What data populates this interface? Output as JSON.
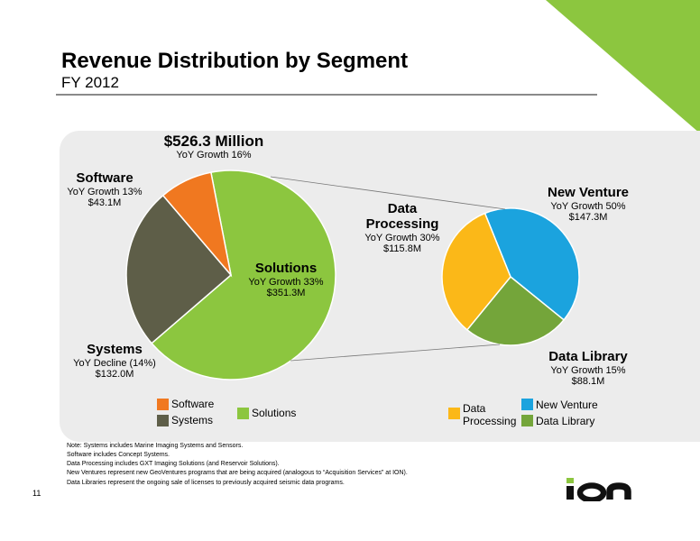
{
  "header": {
    "title": "Revenue Distribution by Segment",
    "subtitle": "FY 2012"
  },
  "colors": {
    "software": "#f07820",
    "systems": "#5e5e48",
    "solutions": "#8cc63f",
    "data_processing": "#fbb818",
    "new_venture": "#1ba3de",
    "data_library": "#74a53a",
    "corner_accent": "#8cc63f",
    "panel": "#ececec"
  },
  "total": {
    "value": "$526.3 Million",
    "growth": "YoY Growth 16%"
  },
  "labels": {
    "software": {
      "name": "Software",
      "growth": "YoY Growth 13%",
      "amount": "$43.1M"
    },
    "systems": {
      "name": "Systems",
      "growth": "YoY Decline (14%)",
      "amount": "$132.0M"
    },
    "solutions": {
      "name": "Solutions",
      "growth": "YoY Growth 33%",
      "amount": "$351.3M"
    },
    "data_processing": {
      "name_line1": "Data",
      "name_line2": "Processing",
      "growth": "YoY Growth 30%",
      "amount": "$115.8M"
    },
    "new_venture": {
      "name": "New Venture",
      "growth": "YoY Growth 50%",
      "amount": "$147.3M"
    },
    "data_library": {
      "name": "Data Library",
      "growth": "YoY Growth 15%",
      "amount": "$88.1M"
    }
  },
  "legend": {
    "software": "Software",
    "systems": "Systems",
    "solutions": "Solutions",
    "data_processing_line1": "Data",
    "data_processing_line2": "Processing",
    "new_venture": "New Venture",
    "data_library": "Data Library"
  },
  "notes": [
    "Note: Systems includes Marine Imaging Systems and Sensors.",
    "Software includes Concept Systems.",
    "Data Processing includes GXT Imaging Solutions (and Reservoir Solutions).",
    "New Ventures represent new GeoVentures programs that are being acquired (analogous to “Acquisition Services” at ION).",
    "Data Libraries represent the ongoing sale of licenses to previously acquired seismic data programs."
  ],
  "page_number": "11",
  "logo_text": "ION",
  "chart_data": [
    {
      "type": "pie",
      "title": "$526.3 Million",
      "subtitle": "YoY Growth 16%",
      "unit": "$M",
      "slices": [
        {
          "name": "Software",
          "value": 43.1,
          "growth": "YoY Growth 13%",
          "color": "#f07820"
        },
        {
          "name": "Systems",
          "value": 132.0,
          "growth": "YoY Decline (14%)",
          "color": "#5e5e48"
        },
        {
          "name": "Solutions",
          "value": 351.3,
          "growth": "YoY Growth 33%",
          "color": "#8cc63f"
        }
      ]
    },
    {
      "type": "pie",
      "breakdown_of": "Solutions",
      "unit": "$M",
      "slices": [
        {
          "name": "Data Processing",
          "value": 115.8,
          "growth": "YoY Growth 30%",
          "color": "#fbb818"
        },
        {
          "name": "New Venture",
          "value": 147.3,
          "growth": "YoY Growth 50%",
          "color": "#1ba3de"
        },
        {
          "name": "Data Library",
          "value": 88.1,
          "growth": "YoY Growth 15%",
          "color": "#74a53a"
        }
      ]
    }
  ]
}
